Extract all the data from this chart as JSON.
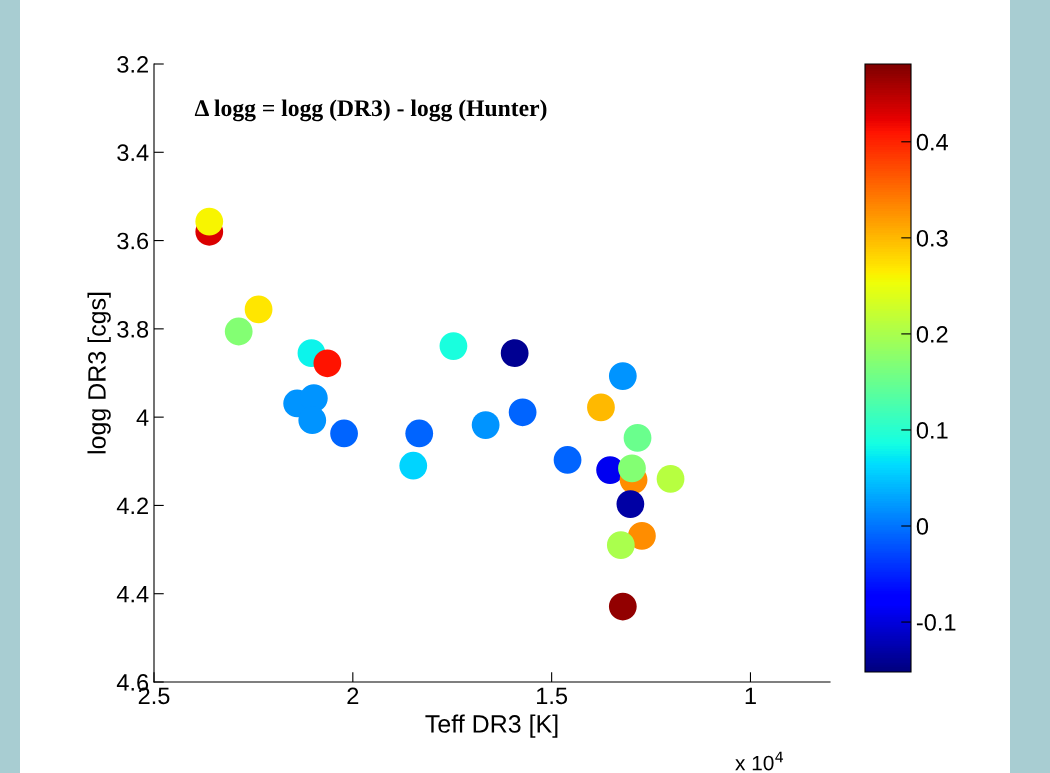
{
  "chart_data": {
    "type": "scatter",
    "title": "Δ logg = logg (DR3) - logg (Hunter)",
    "xlabel": "Teff DR3 [K]",
    "ylabel": "logg DR3 [cgs]",
    "annotations": [
      "x 10$^{4}$"
    ],
    "x": [
      2.361,
      2.361,
      2.237,
      2.287,
      2.104,
      2.064,
      2.14,
      2.098,
      2.102,
      2.022,
      1.833,
      1.848,
      1.747,
      1.593,
      1.666,
      1.573,
      1.321,
      1.376,
      1.284,
      1.46,
      1.353,
      1.294,
      1.298,
      1.201,
      1.302,
      1.273,
      1.326,
      1.321
    ],
    "values": [
      3.58,
      3.557,
      3.756,
      3.806,
      3.855,
      3.878,
      3.969,
      3.957,
      4.007,
      4.037,
      4.037,
      4.11,
      3.839,
      3.855,
      4.018,
      3.989,
      3.907,
      3.978,
      4.047,
      4.097,
      4.12,
      4.142,
      4.116,
      4.14,
      4.197,
      4.269,
      4.29,
      4.429
    ],
    "cvalues": [
      0.43,
      0.26,
      0.27,
      0.17,
      0.08,
      0.41,
      0.02,
      0.02,
      0.02,
      -0.01,
      -0.01,
      0.06,
      0.09,
      -0.14,
      0.02,
      -0.01,
      0.02,
      0.3,
      0.15,
      -0.01,
      -0.09,
      0.33,
      0.17,
      0.21,
      -0.13,
      0.33,
      0.2,
      0.47
    ],
    "xlim": [
      2.5,
      0.8
    ],
    "xticks": [
      2.5,
      2,
      1.5,
      1
    ],
    "ylim": [
      4.6,
      3.2
    ],
    "yticks": [
      3.2,
      3.4,
      3.6,
      3.8,
      4,
      4.2,
      4.4,
      4.6
    ],
    "clim": [
      -0.152,
      0.481
    ],
    "cticks": [
      -0.1,
      0,
      0.1,
      0.2,
      0.3,
      0.4
    ],
    "marker": "circle",
    "grid": false
  }
}
